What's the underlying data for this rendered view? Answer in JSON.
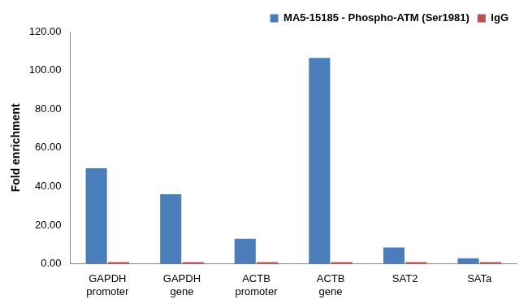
{
  "chart_data": {
    "type": "bar",
    "y_label": "Fold enrichment",
    "categories": [
      "GAPDH promoter",
      "GAPDH gene",
      "ACTB promoter",
      "ACTB gene",
      "SAT2",
      "SATa"
    ],
    "series": [
      {
        "name": "MA5-15185 - Phospho-ATM (Ser1981)",
        "color": "#4a7ebb",
        "values": [
          49.5,
          36,
          13,
          106.5,
          8.5,
          3
        ]
      },
      {
        "name": "IgG",
        "color": "#c0504d",
        "values": [
          1,
          1,
          1,
          1,
          1,
          1
        ]
      }
    ],
    "ylim": [
      0,
      120
    ],
    "yticks": [
      {
        "value": 0,
        "label": "0.00"
      },
      {
        "value": 20,
        "label": "20.00"
      },
      {
        "value": 40,
        "label": "40.00"
      },
      {
        "value": 60,
        "label": "60.00"
      },
      {
        "value": 80,
        "label": "80.00"
      },
      {
        "value": 100,
        "label": "100.00"
      },
      {
        "value": 120,
        "label": "120.00"
      }
    ],
    "grid": false,
    "legend": "top-right"
  }
}
